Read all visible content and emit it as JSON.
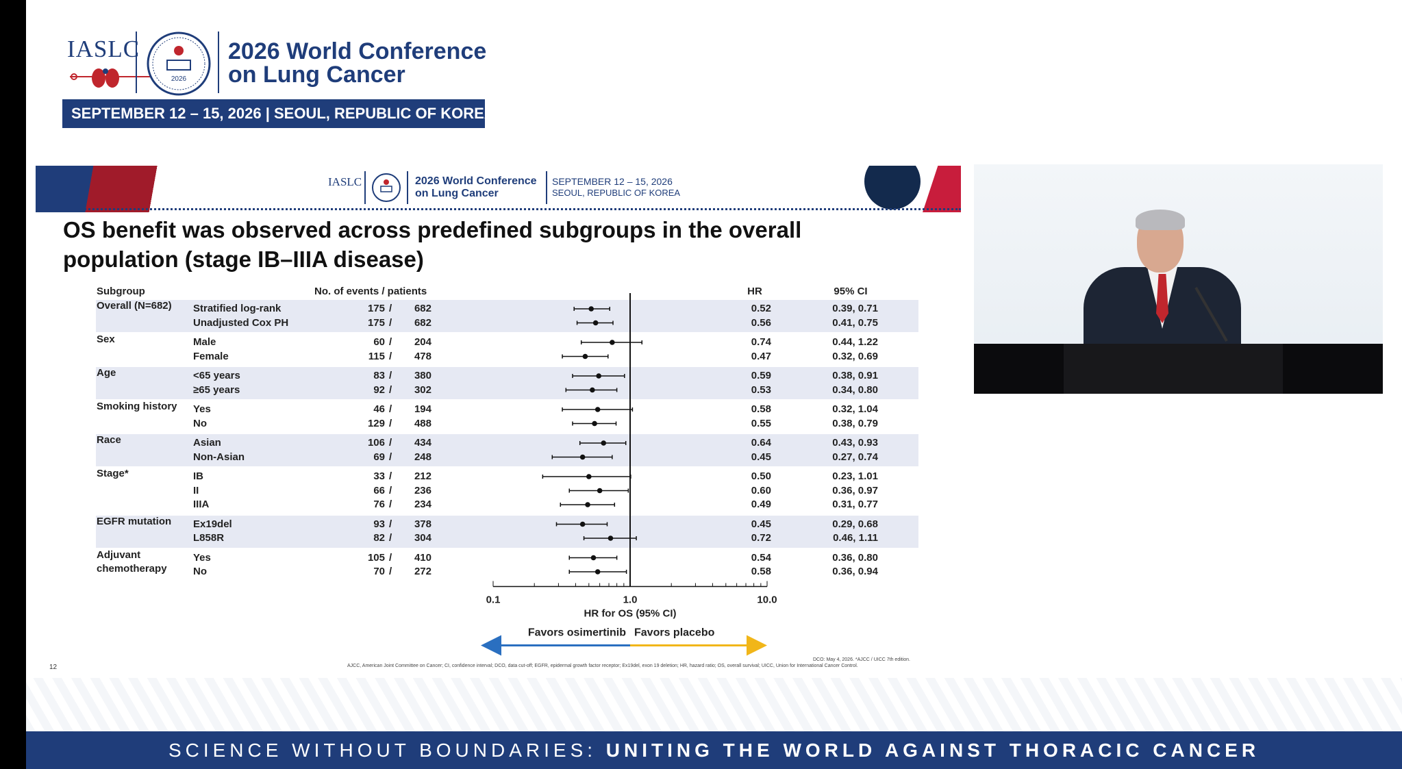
{
  "conference": {
    "logo_text": "IASLC",
    "seal_year": "2026",
    "title_line1": "2026 World Conference",
    "title_line2": "on Lung Cancer",
    "date_bar": "SEPTEMBER 12 – 15, 2026  |  SEOUL, REPUBLIC OF KOREA"
  },
  "slide": {
    "header": {
      "logo_text": "IASLC",
      "conf_line1": "2026 World Conference",
      "conf_line2": "on Lung Cancer",
      "date_line1": "SEPTEMBER 12 – 15, 2026",
      "date_line2": "SEOUL, REPUBLIC OF KOREA"
    },
    "title_line1": "OS benefit was observed across predefined subgroups in the overall",
    "title_line2": "population (stage IB–IIIA disease)",
    "col_subgroup": "Subgroup",
    "col_events": "No. of events  /  patients",
    "col_hr": "HR",
    "col_ci": "95% CI",
    "footnote_right": "DCO: May 4, 2026. *AJCC / UICC 7th edition.",
    "footnote_main": "AJCC, American Joint Committee on Cancer; CI, confidence interval; DCO, data cut-off; EGFR, epidermal growth factor receptor; Ex19del, exon 19 deletion; HR, hazard ratio; OS, overall survival; UICC, Union for International Cancer Control.",
    "slide_number": "12"
  },
  "chart_data": {
    "type": "forest",
    "xlabel": "HR for OS (95% CI)",
    "xscale": "log",
    "xlim": [
      0.1,
      10.0
    ],
    "xticks": [
      "0.1",
      "1.0",
      "10.0"
    ],
    "reference_line": 1.0,
    "favors_left": "Favors osimertinib",
    "favors_right": "Favors placebo",
    "colors": {
      "favors_left": "#2a6fc0",
      "favors_right": "#f1b619",
      "band": "#e6e9f3"
    },
    "groups": [
      {
        "name": "Overall (N=682)",
        "rows": [
          {
            "label": "Stratified log-rank",
            "events": "175",
            "patients": "682",
            "hr": 0.52,
            "hr_text": "0.52",
            "ci": [
              0.39,
              0.71
            ],
            "ci_text": "0.39, 0.71"
          },
          {
            "label": "Unadjusted Cox PH",
            "events": "175",
            "patients": "682",
            "hr": 0.56,
            "hr_text": "0.56",
            "ci": [
              0.41,
              0.75
            ],
            "ci_text": "0.41, 0.75"
          }
        ]
      },
      {
        "name": "Sex",
        "rows": [
          {
            "label": "Male",
            "events": "60",
            "patients": "204",
            "hr": 0.74,
            "hr_text": "0.74",
            "ci": [
              0.44,
              1.22
            ],
            "ci_text": "0.44, 1.22"
          },
          {
            "label": "Female",
            "events": "115",
            "patients": "478",
            "hr": 0.47,
            "hr_text": "0.47",
            "ci": [
              0.32,
              0.69
            ],
            "ci_text": "0.32, 0.69"
          }
        ]
      },
      {
        "name": "Age",
        "rows": [
          {
            "label": "<65 years",
            "events": "83",
            "patients": "380",
            "hr": 0.59,
            "hr_text": "0.59",
            "ci": [
              0.38,
              0.91
            ],
            "ci_text": "0.38, 0.91"
          },
          {
            "label": "≥65 years",
            "events": "92",
            "patients": "302",
            "hr": 0.53,
            "hr_text": "0.53",
            "ci": [
              0.34,
              0.8
            ],
            "ci_text": "0.34, 0.80"
          }
        ]
      },
      {
        "name": "Smoking history",
        "rows": [
          {
            "label": "Yes",
            "events": "46",
            "patients": "194",
            "hr": 0.58,
            "hr_text": "0.58",
            "ci": [
              0.32,
              1.04
            ],
            "ci_text": "0.32, 1.04"
          },
          {
            "label": "No",
            "events": "129",
            "patients": "488",
            "hr": 0.55,
            "hr_text": "0.55",
            "ci": [
              0.38,
              0.79
            ],
            "ci_text": "0.38, 0.79"
          }
        ]
      },
      {
        "name": "Race",
        "rows": [
          {
            "label": "Asian",
            "events": "106",
            "patients": "434",
            "hr": 0.64,
            "hr_text": "0.64",
            "ci": [
              0.43,
              0.93
            ],
            "ci_text": "0.43, 0.93"
          },
          {
            "label": "Non-Asian",
            "events": "69",
            "patients": "248",
            "hr": 0.45,
            "hr_text": "0.45",
            "ci": [
              0.27,
              0.74
            ],
            "ci_text": "0.27, 0.74"
          }
        ]
      },
      {
        "name": "Stage*",
        "rows": [
          {
            "label": "IB",
            "events": "33",
            "patients": "212",
            "hr": 0.5,
            "hr_text": "0.50",
            "ci": [
              0.23,
              1.01
            ],
            "ci_text": "0.23, 1.01"
          },
          {
            "label": "II",
            "events": "66",
            "patients": "236",
            "hr": 0.6,
            "hr_text": "0.60",
            "ci": [
              0.36,
              0.97
            ],
            "ci_text": "0.36, 0.97"
          },
          {
            "label": "IIIA",
            "events": "76",
            "patients": "234",
            "hr": 0.49,
            "hr_text": "0.49",
            "ci": [
              0.31,
              0.77
            ],
            "ci_text": "0.31, 0.77"
          }
        ]
      },
      {
        "name": "EGFR mutation",
        "rows": [
          {
            "label": "Ex19del",
            "events": "93",
            "patients": "378",
            "hr": 0.45,
            "hr_text": "0.45",
            "ci": [
              0.29,
              0.68
            ],
            "ci_text": "0.29, 0.68"
          },
          {
            "label": "L858R",
            "events": "82",
            "patients": "304",
            "hr": 0.72,
            "hr_text": "0.72",
            "ci": [
              0.46,
              1.11
            ],
            "ci_text": "0.46, 1.11"
          }
        ]
      },
      {
        "name": "Adjuvant chemotherapy",
        "name_lines": [
          "Adjuvant",
          "chemotherapy"
        ],
        "rows": [
          {
            "label": "Yes",
            "events": "105",
            "patients": "410",
            "hr": 0.54,
            "hr_text": "0.54",
            "ci": [
              0.36,
              0.8
            ],
            "ci_text": "0.36, 0.80"
          },
          {
            "label": "No",
            "events": "70",
            "patients": "272",
            "hr": 0.58,
            "hr_text": "0.58",
            "ci": [
              0.36,
              0.94
            ],
            "ci_text": "0.36, 0.94"
          }
        ]
      }
    ]
  },
  "footer": {
    "tagline_light": "SCIENCE WITHOUT BOUNDARIES: ",
    "tagline_bold": "UNITING THE WORLD AGAINST THORACIC CANCER"
  }
}
